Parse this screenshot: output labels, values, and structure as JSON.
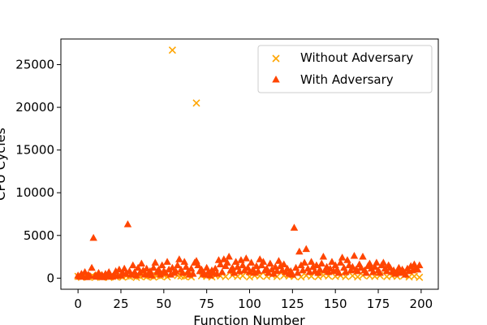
{
  "chart_data": {
    "type": "scatter",
    "title": "",
    "xlabel": "Function Number",
    "ylabel": "CPU Cycles",
    "xlim": [
      -10,
      210
    ],
    "ylim": [
      -1300,
      28000
    ],
    "x_ticks": [
      0,
      25,
      50,
      75,
      100,
      125,
      150,
      175,
      200
    ],
    "y_ticks": [
      0,
      5000,
      10000,
      15000,
      20000,
      25000
    ],
    "grid": false,
    "legend_position": "top-right",
    "series": [
      {
        "name": "Without Adversary",
        "marker": "x",
        "color": "#FFA500",
        "points": [
          [
            0,
            200
          ],
          [
            2,
            100
          ],
          [
            4,
            300
          ],
          [
            6,
            150
          ],
          [
            8,
            250
          ],
          [
            10,
            100
          ],
          [
            12,
            350
          ],
          [
            14,
            120
          ],
          [
            16,
            200
          ],
          [
            18,
            80
          ],
          [
            20,
            300
          ],
          [
            22,
            150
          ],
          [
            24,
            400
          ],
          [
            26,
            120
          ],
          [
            28,
            250
          ],
          [
            30,
            180
          ],
          [
            32,
            300
          ],
          [
            34,
            100
          ],
          [
            36,
            220
          ],
          [
            38,
            350
          ],
          [
            40,
            150
          ],
          [
            42,
            280
          ],
          [
            44,
            120
          ],
          [
            46,
            300
          ],
          [
            48,
            200
          ],
          [
            50,
            350
          ],
          [
            52,
            150
          ],
          [
            55,
            26700
          ],
          [
            58,
            300
          ],
          [
            60,
            250
          ],
          [
            62,
            180
          ],
          [
            64,
            320
          ],
          [
            66,
            150
          ],
          [
            69,
            20500
          ],
          [
            72,
            280
          ],
          [
            75,
            200
          ],
          [
            78,
            150
          ],
          [
            80,
            300
          ],
          [
            83,
            250
          ],
          [
            86,
            180
          ],
          [
            90,
            320
          ],
          [
            93,
            200
          ],
          [
            96,
            280
          ],
          [
            100,
            150
          ],
          [
            103,
            300
          ],
          [
            106,
            250
          ],
          [
            110,
            200
          ],
          [
            113,
            350
          ],
          [
            116,
            180
          ],
          [
            120,
            300
          ],
          [
            123,
            250
          ],
          [
            126,
            200
          ],
          [
            130,
            150
          ],
          [
            133,
            300
          ],
          [
            136,
            220
          ],
          [
            140,
            180
          ],
          [
            143,
            320
          ],
          [
            146,
            250
          ],
          [
            150,
            200
          ],
          [
            153,
            300
          ],
          [
            156,
            180
          ],
          [
            160,
            280
          ],
          [
            163,
            150
          ],
          [
            166,
            320
          ],
          [
            170,
            250
          ],
          [
            173,
            200
          ],
          [
            176,
            300
          ],
          [
            180,
            180
          ],
          [
            183,
            250
          ],
          [
            186,
            200
          ],
          [
            190,
            300
          ],
          [
            193,
            150
          ],
          [
            196,
            220
          ],
          [
            199,
            100
          ]
        ]
      },
      {
        "name": "With Adversary",
        "marker": "^",
        "color": "#FF4500",
        "points": [
          [
            0,
            300
          ],
          [
            1,
            150
          ],
          [
            2,
            500
          ],
          [
            3,
            200
          ],
          [
            4,
            700
          ],
          [
            5,
            100
          ],
          [
            6,
            400
          ],
          [
            7,
            250
          ],
          [
            8,
            1200
          ],
          [
            9,
            4700
          ],
          [
            10,
            300
          ],
          [
            11,
            150
          ],
          [
            12,
            600
          ],
          [
            13,
            200
          ],
          [
            14,
            350
          ],
          [
            15,
            100
          ],
          [
            16,
            500
          ],
          [
            17,
            200
          ],
          [
            18,
            700
          ],
          [
            19,
            300
          ],
          [
            20,
            150
          ],
          [
            21,
            400
          ],
          [
            22,
            800
          ],
          [
            23,
            250
          ],
          [
            24,
            1000
          ],
          [
            25,
            300
          ],
          [
            26,
            600
          ],
          [
            27,
            1100
          ],
          [
            28,
            500
          ],
          [
            29,
            6300
          ],
          [
            30,
            800
          ],
          [
            31,
            400
          ],
          [
            32,
            1500
          ],
          [
            33,
            700
          ],
          [
            34,
            300
          ],
          [
            35,
            1200
          ],
          [
            36,
            600
          ],
          [
            37,
            1700
          ],
          [
            38,
            900
          ],
          [
            39,
            400
          ],
          [
            40,
            1100
          ],
          [
            41,
            500
          ],
          [
            42,
            800
          ],
          [
            43,
            300
          ],
          [
            44,
            1200
          ],
          [
            45,
            1800
          ],
          [
            46,
            700
          ],
          [
            47,
            1000
          ],
          [
            48,
            400
          ],
          [
            49,
            1500
          ],
          [
            50,
            800
          ],
          [
            51,
            600
          ],
          [
            52,
            1900
          ],
          [
            53,
            1000
          ],
          [
            54,
            400
          ],
          [
            55,
            1200
          ],
          [
            56,
            600
          ],
          [
            57,
            800
          ],
          [
            58,
            1500
          ],
          [
            59,
            2200
          ],
          [
            60,
            1000
          ],
          [
            61,
            600
          ],
          [
            62,
            1900
          ],
          [
            63,
            1300
          ],
          [
            64,
            700
          ],
          [
            65,
            400
          ],
          [
            66,
            1100
          ],
          [
            67,
            500
          ],
          [
            68,
            1800
          ],
          [
            69,
            2000
          ],
          [
            70,
            1500
          ],
          [
            71,
            800
          ],
          [
            72,
            1000
          ],
          [
            73,
            500
          ],
          [
            74,
            400
          ],
          [
            75,
            1200
          ],
          [
            76,
            700
          ],
          [
            77,
            300
          ],
          [
            78,
            900
          ],
          [
            79,
            600
          ],
          [
            80,
            1100
          ],
          [
            81,
            500
          ],
          [
            82,
            2100
          ],
          [
            83,
            1600
          ],
          [
            84,
            700
          ],
          [
            85,
            2200
          ],
          [
            86,
            1400
          ],
          [
            87,
            1800
          ],
          [
            88,
            2500
          ],
          [
            89,
            900
          ],
          [
            90,
            1200
          ],
          [
            91,
            600
          ],
          [
            92,
            1900
          ],
          [
            93,
            1300
          ],
          [
            94,
            800
          ],
          [
            95,
            2100
          ],
          [
            96,
            1500
          ],
          [
            97,
            900
          ],
          [
            98,
            2300
          ],
          [
            99,
            1200
          ],
          [
            100,
            700
          ],
          [
            101,
            1800
          ],
          [
            102,
            1000
          ],
          [
            103,
            600
          ],
          [
            104,
            1400
          ],
          [
            105,
            800
          ],
          [
            106,
            2200
          ],
          [
            107,
            1500
          ],
          [
            108,
            1900
          ],
          [
            109,
            900
          ],
          [
            110,
            1100
          ],
          [
            111,
            600
          ],
          [
            112,
            1700
          ],
          [
            113,
            1000
          ],
          [
            114,
            500
          ],
          [
            115,
            1300
          ],
          [
            116,
            800
          ],
          [
            117,
            2000
          ],
          [
            118,
            1400
          ],
          [
            119,
            900
          ],
          [
            120,
            1600
          ],
          [
            121,
            700
          ],
          [
            122,
            1100
          ],
          [
            123,
            500
          ],
          [
            124,
            800
          ],
          [
            125,
            400
          ],
          [
            126,
            5900
          ],
          [
            127,
            1200
          ],
          [
            128,
            600
          ],
          [
            129,
            3100
          ],
          [
            130,
            1500
          ],
          [
            131,
            900
          ],
          [
            132,
            1800
          ],
          [
            133,
            3400
          ],
          [
            134,
            1100
          ],
          [
            135,
            700
          ],
          [
            136,
            1900
          ],
          [
            137,
            1300
          ],
          [
            138,
            800
          ],
          [
            139,
            1500
          ],
          [
            140,
            600
          ],
          [
            141,
            1000
          ],
          [
            142,
            1700
          ],
          [
            143,
            2500
          ],
          [
            144,
            900
          ],
          [
            145,
            1300
          ],
          [
            146,
            700
          ],
          [
            147,
            1100
          ],
          [
            148,
            1900
          ],
          [
            149,
            800
          ],
          [
            150,
            1500
          ],
          [
            151,
            1000
          ],
          [
            152,
            600
          ],
          [
            153,
            1800
          ],
          [
            154,
            2400
          ],
          [
            155,
            1200
          ],
          [
            156,
            700
          ],
          [
            157,
            2100
          ],
          [
            158,
            1500
          ],
          [
            159,
            900
          ],
          [
            160,
            1300
          ],
          [
            161,
            2600
          ],
          [
            162,
            1000
          ],
          [
            163,
            800
          ],
          [
            164,
            1600
          ],
          [
            165,
            1200
          ],
          [
            166,
            2500
          ],
          [
            167,
            900
          ],
          [
            168,
            600
          ],
          [
            169,
            1400
          ],
          [
            170,
            1700
          ],
          [
            171,
            1100
          ],
          [
            172,
            700
          ],
          [
            173,
            1300
          ],
          [
            174,
            1800
          ],
          [
            175,
            900
          ],
          [
            176,
            600
          ],
          [
            177,
            1500
          ],
          [
            178,
            1800
          ],
          [
            179,
            1100
          ],
          [
            180,
            800
          ],
          [
            181,
            1500
          ],
          [
            182,
            1200
          ],
          [
            183,
            700
          ],
          [
            184,
            900
          ],
          [
            185,
            500
          ],
          [
            186,
            800
          ],
          [
            187,
            1200
          ],
          [
            188,
            600
          ],
          [
            189,
            1000
          ],
          [
            190,
            700
          ],
          [
            191,
            400
          ],
          [
            192,
            1100
          ],
          [
            193,
            800
          ],
          [
            194,
            1400
          ],
          [
            195,
            900
          ],
          [
            196,
            1600
          ],
          [
            197,
            1200
          ],
          [
            198,
            1000
          ],
          [
            199,
            1500
          ]
        ]
      }
    ]
  }
}
